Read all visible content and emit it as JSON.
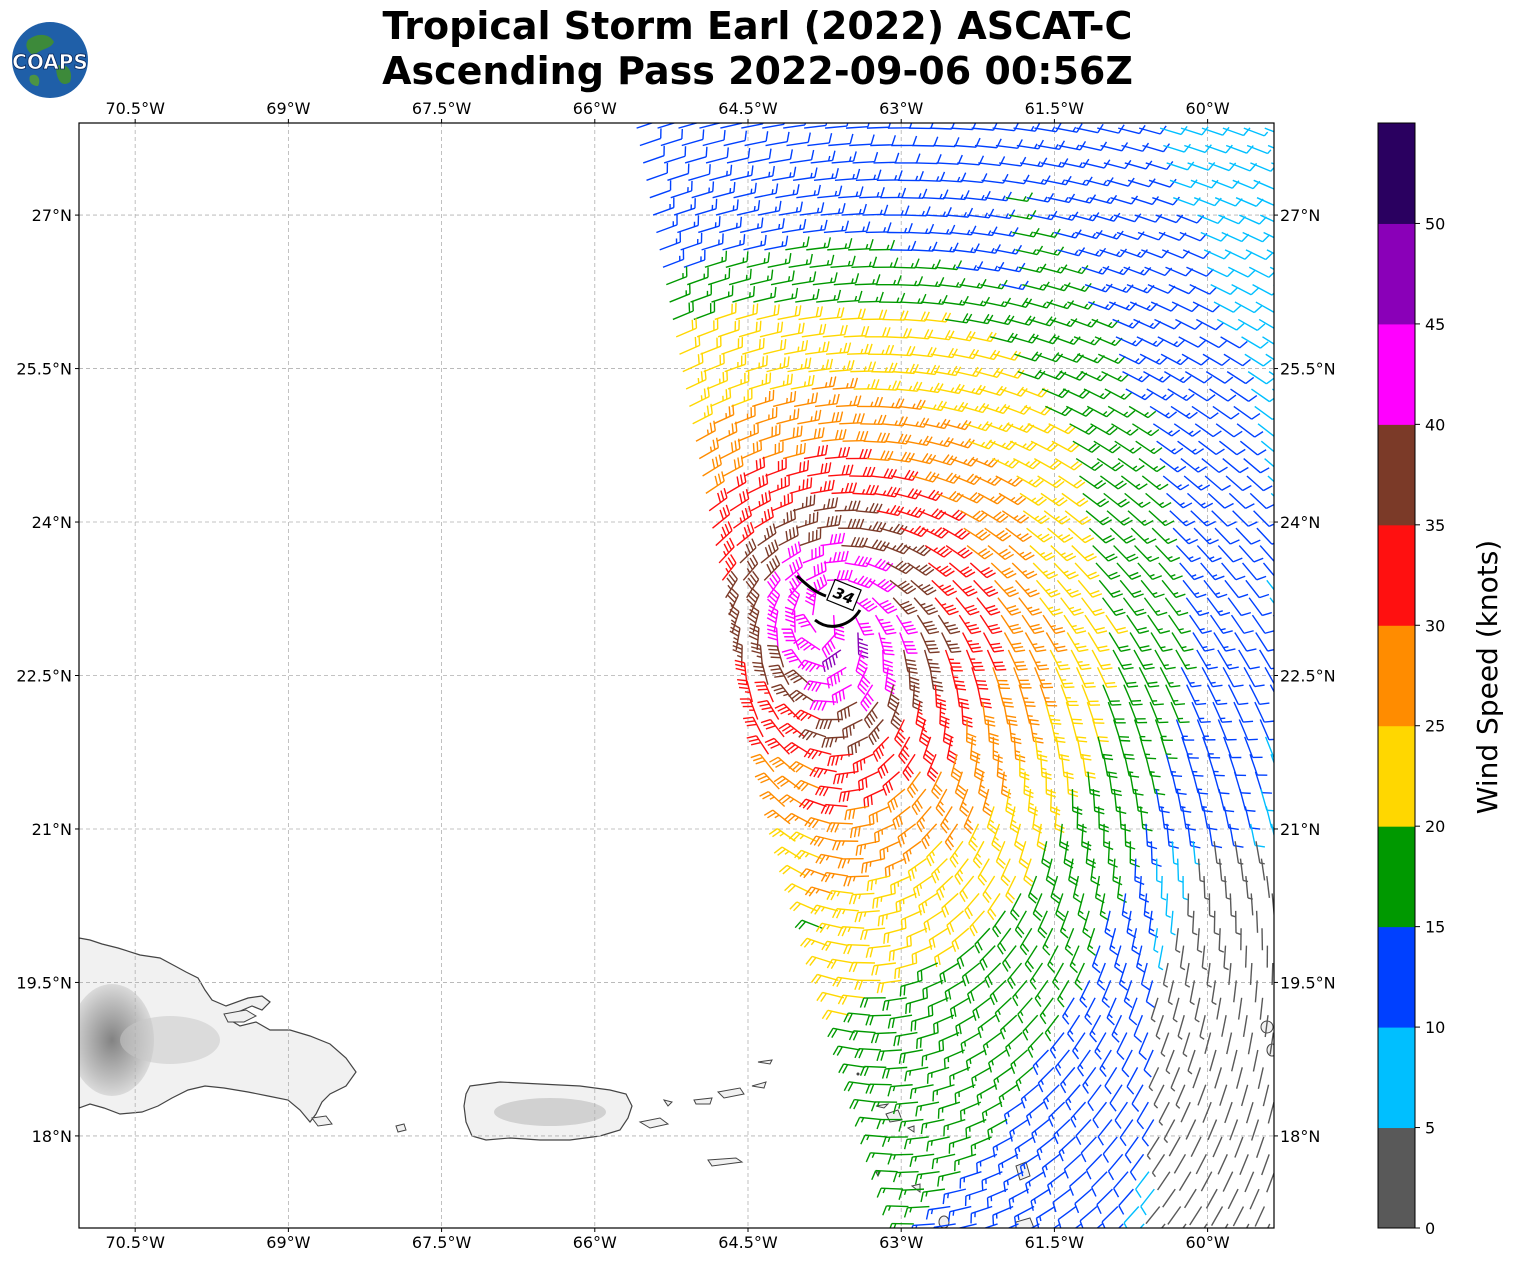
{
  "title": {
    "line1": "Tropical Storm Earl (2022) ASCAT-C",
    "line2": "Ascending Pass 2022-09-06 00:56Z"
  },
  "logo": {
    "text": "COAPS",
    "icon": "globe-logo-icon"
  },
  "map": {
    "lon_ticks": [
      "70.5°W",
      "69°W",
      "67.5°W",
      "66°W",
      "64.5°W",
      "63°W",
      "61.5°W",
      "60°W"
    ],
    "lat_ticks": [
      "27°N",
      "25.5°N",
      "24°N",
      "22.5°N",
      "21°N",
      "19.5°N",
      "18°N"
    ],
    "lon_range": [
      -71.05,
      -59.35
    ],
    "lat_range": [
      17.1,
      27.9
    ],
    "grid": true,
    "wind_radius_label": "34",
    "land_features": [
      "Hispaniola",
      "Puerto Rico",
      "Virgin Islands",
      "Lesser Antilles"
    ]
  },
  "colorbar": {
    "title": "Wind Speed (knots)",
    "tick_labels": [
      "0",
      "5",
      "10",
      "15",
      "20",
      "25",
      "30",
      "35",
      "40",
      "45",
      "50"
    ],
    "bins": [
      {
        "min": 0,
        "max": 5,
        "color": "#595959"
      },
      {
        "min": 5,
        "max": 10,
        "color": "#00bfff"
      },
      {
        "min": 10,
        "max": 15,
        "color": "#0040ff"
      },
      {
        "min": 15,
        "max": 20,
        "color": "#009900"
      },
      {
        "min": 20,
        "max": 25,
        "color": "#ffd700"
      },
      {
        "min": 25,
        "max": 30,
        "color": "#ff8c00"
      },
      {
        "min": 30,
        "max": 35,
        "color": "#ff1010"
      },
      {
        "min": 35,
        "max": 40,
        "color": "#7b3a28"
      },
      {
        "min": 40,
        "max": 45,
        "color": "#ff00ff"
      },
      {
        "min": 45,
        "max": 50,
        "color": "#8a00b8"
      },
      {
        "min": 50,
        "max": 55,
        "color": "#2a0060"
      }
    ]
  }
}
